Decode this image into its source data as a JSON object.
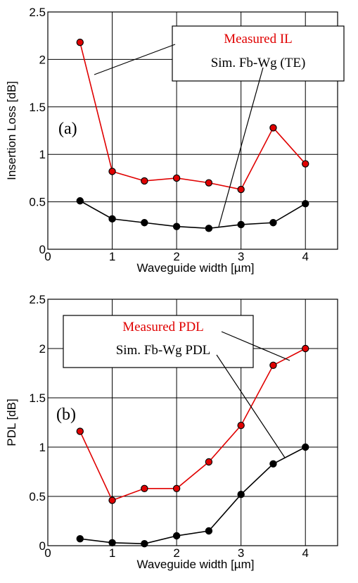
{
  "chart_data": [
    {
      "type": "line",
      "panel_label": "(a)",
      "xlabel": "Waveguide width [µm]",
      "ylabel": "Insertion Loss [dB]",
      "xlim": [
        0,
        4.5
      ],
      "ylim": [
        0,
        2.5
      ],
      "xticks": [
        "0",
        "1",
        "2",
        "3",
        "4"
      ],
      "yticks": [
        "0",
        "0.5",
        "1",
        "1.5",
        "2",
        "2.5"
      ],
      "grid": true,
      "legend_placement": "top-right",
      "x": [
        0.5,
        1,
        1.5,
        2,
        2.5,
        3,
        3.5,
        4
      ],
      "series": [
        {
          "name": "Measured IL",
          "color": "#e00000",
          "values": [
            2.18,
            0.82,
            0.72,
            0.75,
            0.7,
            0.63,
            1.28,
            0.9
          ]
        },
        {
          "name": "Sim. Fb-Wg (TE)",
          "color": "#000000",
          "values": [
            0.51,
            0.32,
            0.28,
            0.24,
            0.22,
            0.26,
            0.28,
            0.48
          ]
        }
      ]
    },
    {
      "type": "line",
      "panel_label": "(b)",
      "xlabel": "Waveguide width [µm]",
      "ylabel": "PDL [dB]",
      "xlim": [
        0,
        4.5
      ],
      "ylim": [
        0,
        2.5
      ],
      "xticks": [
        "0",
        "1",
        "2",
        "3",
        "4"
      ],
      "yticks": [
        "0",
        "0.5",
        "1",
        "1.5",
        "2",
        "2.5"
      ],
      "grid": true,
      "legend_placement": "top-left",
      "x": [
        0.5,
        1,
        1.5,
        2,
        2.5,
        3,
        3.5,
        4
      ],
      "series": [
        {
          "name": "Measured PDL",
          "color": "#e00000",
          "values": [
            1.16,
            0.46,
            0.58,
            0.58,
            0.85,
            1.22,
            1.83,
            2.0
          ]
        },
        {
          "name": "Sim. Fb-Wg PDL",
          "color": "#000000",
          "values": [
            0.07,
            0.03,
            0.02,
            0.1,
            0.15,
            0.52,
            0.83,
            1.0
          ]
        }
      ]
    }
  ]
}
